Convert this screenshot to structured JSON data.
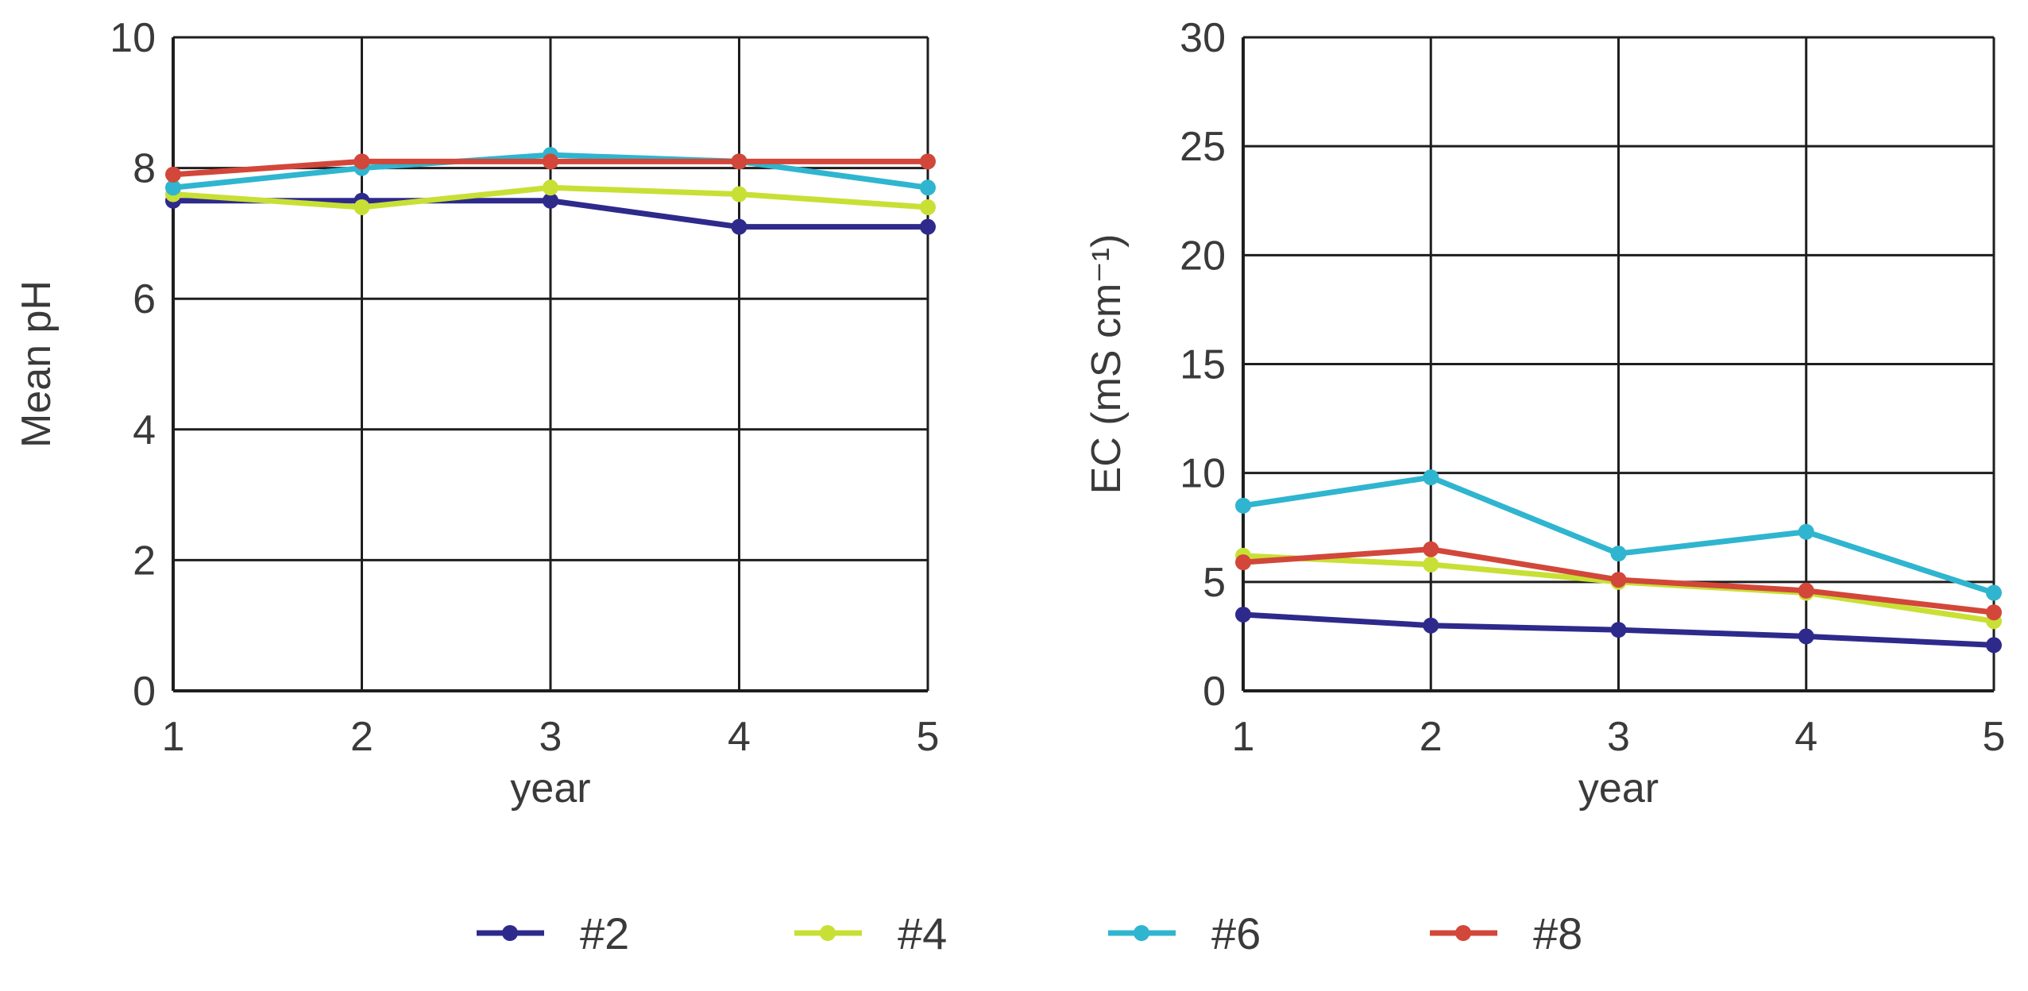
{
  "chart_data": [
    {
      "type": "line",
      "title": "",
      "xlabel": "year",
      "ylabel": "Mean pH",
      "x": [
        1,
        2,
        3,
        4,
        5
      ],
      "xticks": [
        "1",
        "2",
        "3",
        "4",
        "5"
      ],
      "ylim": [
        0,
        10
      ],
      "yticks": [
        "0",
        "2",
        "4",
        "6",
        "8",
        "10"
      ],
      "grid": true,
      "series": [
        {
          "name": "#2",
          "color": "#2e2a8c",
          "values": [
            7.5,
            7.5,
            7.5,
            7.1,
            7.1
          ]
        },
        {
          "name": "#4",
          "color": "#c8e035",
          "values": [
            7.6,
            7.4,
            7.7,
            7.6,
            7.4
          ]
        },
        {
          "name": "#6",
          "color": "#2fb5cf",
          "values": [
            7.7,
            8.0,
            8.2,
            8.1,
            7.7
          ]
        },
        {
          "name": "#8",
          "color": "#d2473a",
          "values": [
            7.9,
            8.1,
            8.1,
            8.1,
            8.1
          ]
        }
      ]
    },
    {
      "type": "line",
      "title": "",
      "xlabel": "year",
      "ylabel": "EC (mS cm⁻¹)",
      "x": [
        1,
        2,
        3,
        4,
        5
      ],
      "xticks": [
        "1",
        "2",
        "3",
        "4",
        "5"
      ],
      "ylim": [
        0,
        30
      ],
      "yticks": [
        "0",
        "5",
        "10",
        "15",
        "20",
        "25",
        "30"
      ],
      "grid": true,
      "series": [
        {
          "name": "#2",
          "color": "#2e2a8c",
          "values": [
            3.5,
            3.0,
            2.8,
            2.5,
            2.1
          ]
        },
        {
          "name": "#4",
          "color": "#c8e035",
          "values": [
            6.2,
            5.8,
            5.0,
            4.5,
            3.2
          ]
        },
        {
          "name": "#6",
          "color": "#2fb5cf",
          "values": [
            8.5,
            9.8,
            6.3,
            7.3,
            4.5
          ]
        },
        {
          "name": "#8",
          "color": "#d2473a",
          "values": [
            5.9,
            6.5,
            5.1,
            4.6,
            3.6
          ]
        }
      ]
    }
  ],
  "legend": {
    "position": "bottom",
    "items": [
      {
        "label": "#2",
        "color": "#2e2a8c"
      },
      {
        "label": "#4",
        "color": "#c8e035"
      },
      {
        "label": "#6",
        "color": "#2fb5cf"
      },
      {
        "label": "#8",
        "color": "#d2473a"
      }
    ]
  },
  "labels": {
    "ph_ylabel": "Mean pH",
    "ec_ylabel": "EC (mS cm⁻¹)",
    "xlabel": "year"
  }
}
